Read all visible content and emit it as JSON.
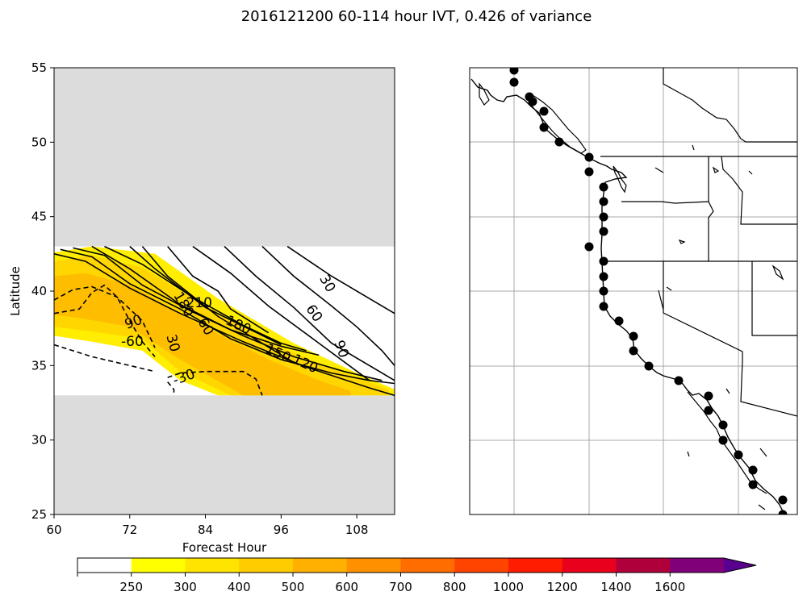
{
  "figure": {
    "title": "2016121200 60-114 hour IVT, 0.426 of variance"
  },
  "chart_data": [
    {
      "type": "contour",
      "panel": "left",
      "xlabel": "Forecast Hour",
      "ylabel": "Latitude",
      "xlim": [
        60,
        114
      ],
      "ylim": [
        25,
        55
      ],
      "x_ticks": [
        "60",
        "72",
        "84",
        "96",
        "108"
      ],
      "y_ticks": [
        "25",
        "30",
        "35",
        "40",
        "45",
        "50",
        "55"
      ],
      "masked_lat_ranges": [
        [
          43,
          55
        ],
        [
          25,
          33
        ]
      ],
      "colors": {
        "masked": "#dcdcdc",
        "ivt_250": "#ffee00",
        "ivt_300": "#ffd600",
        "ivt_400": "#ffbd00"
      },
      "ivt_fill": [
        {
          "level": 250,
          "polygon": [
            [
              60,
              42.6
            ],
            [
              66,
              43
            ],
            [
              76,
              42.5
            ],
            [
              86,
              39.5
            ],
            [
              98,
              36.5
            ],
            [
              108,
              34.5
            ],
            [
              114,
              33.4
            ],
            [
              114,
              33
            ],
            [
              86,
              33
            ],
            [
              80,
              34
            ],
            [
              74,
              36
            ],
            [
              66,
              36.6
            ],
            [
              60,
              37
            ]
          ]
        },
        {
          "level": 300,
          "polygon": [
            [
              60,
              42
            ],
            [
              66,
              42.4
            ],
            [
              74,
              41.6
            ],
            [
              84,
              39
            ],
            [
              96,
              36.2
            ],
            [
              106,
              34.5
            ],
            [
              113,
              33.4
            ],
            [
              113,
              33
            ],
            [
              88,
              33
            ],
            [
              80,
              34.6
            ],
            [
              74,
              36.8
            ],
            [
              66,
              37.3
            ],
            [
              60,
              37.6
            ]
          ]
        },
        {
          "level": 400,
          "polygon": [
            [
              60,
              41
            ],
            [
              65,
              41.2
            ],
            [
              72,
              40.4
            ],
            [
              82,
              38
            ],
            [
              94,
              35.4
            ],
            [
              102,
              34
            ],
            [
              107,
              33.3
            ],
            [
              107,
              33
            ],
            [
              90,
              33
            ],
            [
              80,
              35.4
            ],
            [
              72,
              37.6
            ],
            [
              64,
              38.2
            ],
            [
              60,
              38.4
            ]
          ]
        }
      ],
      "solid_contours": [
        [
          [
            60,
            42.5
          ],
          [
            65,
            42
          ],
          [
            72,
            40.2
          ],
          [
            80,
            38.5
          ],
          [
            90,
            36.6
          ],
          [
            100,
            34.9
          ],
          [
            110,
            33.5
          ],
          [
            114,
            33
          ]
        ],
        [
          [
            61,
            42.8
          ],
          [
            66,
            42.3
          ],
          [
            72,
            40.5
          ],
          [
            80,
            38.8
          ],
          [
            88,
            36.8
          ],
          [
            96,
            35.4
          ],
          [
            104,
            34.5
          ],
          [
            110,
            34
          ],
          [
            114,
            33.8
          ]
        ],
        [
          [
            63,
            42.9
          ],
          [
            68,
            42.4
          ],
          [
            74,
            40.4
          ],
          [
            82,
            38.6
          ],
          [
            90,
            37
          ],
          [
            98,
            35.6
          ],
          [
            106,
            34.6
          ],
          [
            112,
            34
          ]
        ],
        [
          [
            66,
            43
          ],
          [
            72,
            41.5
          ],
          [
            80,
            39.1
          ],
          [
            88,
            37.4
          ],
          [
            96,
            36.3
          ],
          [
            102,
            35.7
          ]
        ],
        [
          [
            68,
            43
          ],
          [
            74,
            41.8
          ],
          [
            82,
            39.6
          ],
          [
            90,
            37.7
          ],
          [
            96,
            36.5
          ],
          [
            100,
            36
          ]
        ],
        [
          [
            72,
            43
          ],
          [
            76,
            41.5
          ],
          [
            84,
            38.9
          ],
          [
            96,
            36.4
          ]
        ],
        [
          [
            74,
            43
          ],
          [
            78,
            41
          ],
          [
            86,
            38.3
          ],
          [
            98,
            35.2
          ]
        ],
        [
          [
            78,
            43
          ],
          [
            82,
            41
          ],
          [
            86,
            40
          ],
          [
            88,
            38.8
          ],
          [
            94,
            37.2
          ]
        ],
        [
          [
            82,
            43
          ],
          [
            88,
            41.2
          ],
          [
            94,
            39
          ],
          [
            102,
            36.5
          ],
          [
            110,
            34
          ]
        ],
        [
          [
            87,
            43
          ],
          [
            92,
            41
          ],
          [
            98,
            38.9
          ],
          [
            104,
            36.5
          ],
          [
            114,
            34
          ]
        ],
        [
          [
            93,
            43
          ],
          [
            98,
            41
          ],
          [
            104,
            39
          ],
          [
            108,
            37.6
          ],
          [
            112,
            36
          ],
          [
            114,
            35
          ]
        ],
        [
          [
            97,
            43
          ],
          [
            104,
            41
          ],
          [
            110,
            39.5
          ],
          [
            114,
            38.5
          ]
        ]
      ],
      "dashed_contours": [
        [
          [
            60,
            36.4
          ],
          [
            66,
            35.6
          ],
          [
            72,
            35
          ],
          [
            76,
            34.6
          ]
        ],
        [
          [
            60,
            38.5
          ],
          [
            64,
            38.8
          ],
          [
            66,
            39.9
          ],
          [
            68,
            40.4
          ],
          [
            70,
            39.6
          ],
          [
            72,
            38
          ],
          [
            74,
            36.6
          ],
          [
            76,
            35.6
          ]
        ],
        [
          [
            60,
            39.4
          ],
          [
            63,
            40.1
          ],
          [
            66,
            40.3
          ],
          [
            70,
            39.6
          ],
          [
            74,
            38
          ],
          [
            76,
            36.2
          ]
        ],
        [
          [
            78,
            34.2
          ],
          [
            80,
            34.5
          ],
          [
            84,
            34.6
          ],
          [
            90,
            34.6
          ],
          [
            92,
            34.1
          ],
          [
            93,
            33
          ]
        ],
        [
          [
            78,
            33.9
          ],
          [
            79,
            33.4
          ],
          [
            79,
            33
          ]
        ]
      ],
      "contour_labels": [
        {
          "text": "30",
          "x": 103.3,
          "y": 40.5,
          "rot": 60
        },
        {
          "text": "60",
          "x": 101.2,
          "y": 38.5,
          "rot": 55
        },
        {
          "text": "90",
          "x": 105.5,
          "y": 36.1,
          "rot": 70
        },
        {
          "text": "120",
          "x": 99.8,
          "y": 35.1,
          "rot": 25
        },
        {
          "text": "150",
          "x": 95.5,
          "y": 35.8,
          "rot": 25
        },
        {
          "text": "180",
          "x": 89.2,
          "y": 37.7,
          "rot": 25
        },
        {
          "text": "210",
          "x": 83,
          "y": 39.2,
          "rot": 0
        },
        {
          "text": "180",
          "x": 80.5,
          "y": 39.1,
          "rot": 60
        },
        {
          "text": "60",
          "x": 84,
          "y": 37.6,
          "rot": 60
        },
        {
          "text": "30",
          "x": 78.8,
          "y": 36.5,
          "rot": 75
        },
        {
          "text": "90",
          "x": 72.6,
          "y": 37.9,
          "rot": -20
        },
        {
          "text": "-60",
          "x": 72.4,
          "y": 36.6,
          "rot": 0
        },
        {
          "text": "-30",
          "x": 80.6,
          "y": 34.2,
          "rot": -20
        }
      ]
    },
    {
      "type": "map",
      "panel": "right",
      "stations_label": "station points along the US West Coast",
      "station_count": 32
    },
    {
      "type": "colorbar",
      "tick_labels": [
        "250",
        "300",
        "400",
        "500",
        "600",
        "700",
        "800",
        "1000",
        "1200",
        "1400",
        "1600"
      ],
      "bins": [
        {
          "color": "#ffffff"
        },
        {
          "color": "#ffff00"
        },
        {
          "color": "#ffe400"
        },
        {
          "color": "#ffcc00"
        },
        {
          "color": "#ffb000"
        },
        {
          "color": "#ff9000"
        },
        {
          "color": "#ff6c00"
        },
        {
          "color": "#ff4400"
        },
        {
          "color": "#ff1c00"
        },
        {
          "color": "#e8001c"
        },
        {
          "color": "#b0003c"
        },
        {
          "color": "#80007a"
        },
        {
          "color": "#5a0090"
        }
      ],
      "extend": "max"
    }
  ]
}
